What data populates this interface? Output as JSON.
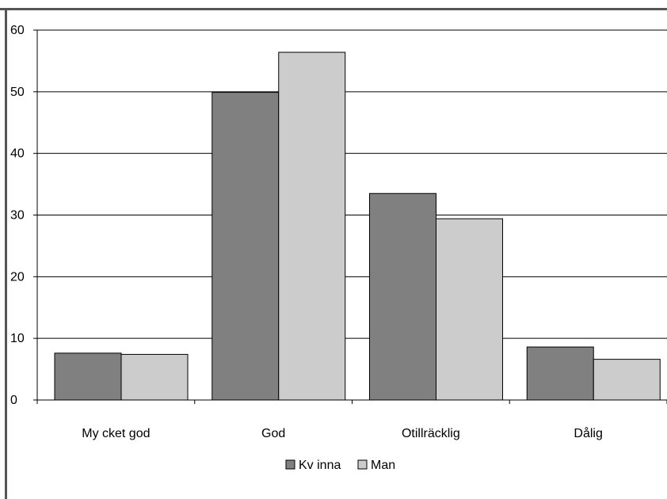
{
  "chart_data": {
    "type": "bar",
    "categories": [
      "Mycket god",
      "God",
      "Otillräcklig",
      "Dålig"
    ],
    "series": [
      {
        "name": "Kvinna",
        "values": [
          7.6,
          49.9,
          33.5,
          8.6
        ]
      },
      {
        "name": "Man",
        "values": [
          7.4,
          56.4,
          29.4,
          6.6
        ]
      }
    ],
    "category_display": [
      "My cket god",
      "God",
      "Otillräcklig",
      "Dålig"
    ],
    "legend_display": [
      "Kv inna",
      "Man"
    ],
    "yticks": [
      0,
      10,
      20,
      30,
      40,
      50,
      60
    ],
    "ylim": [
      0,
      60
    ],
    "grid": true,
    "legend_position": "bottom",
    "colors": [
      "#808080",
      "#cccccc"
    ],
    "title": "",
    "xlabel": "",
    "ylabel": ""
  }
}
